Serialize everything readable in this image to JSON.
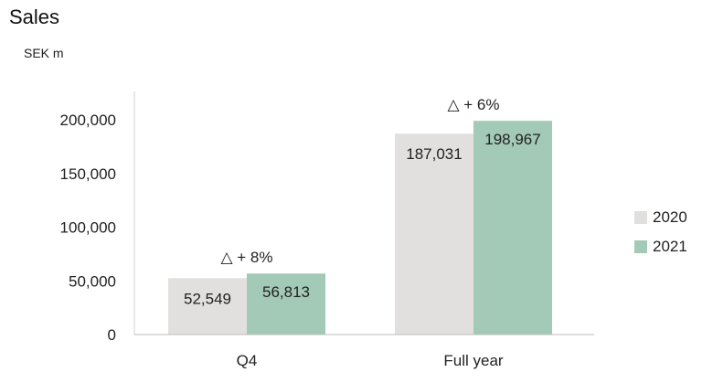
{
  "title": "Sales",
  "unit_label": "SEK m",
  "colors": {
    "series_2020": "#e2e0de",
    "series_2021": "#a3c9b7"
  },
  "chart_data": {
    "type": "bar",
    "categories": [
      "Q4",
      "Full year"
    ],
    "series": [
      {
        "name": "2020",
        "values": [
          52549,
          187031
        ]
      },
      {
        "name": "2021",
        "values": [
          56813,
          198967
        ]
      }
    ],
    "data_labels": [
      [
        "52,549",
        "187,031"
      ],
      [
        "56,813",
        "198,967"
      ]
    ],
    "annotations": [
      "△  + 8%",
      "△  + 6%"
    ],
    "yticks": [
      0,
      50000,
      100000,
      150000,
      200000
    ],
    "ytick_labels": [
      "0",
      "50,000",
      "100,000",
      "150,000",
      "200,000"
    ],
    "ylim": [
      0,
      200000
    ],
    "xlabel": "",
    "ylabel": "",
    "grid": false,
    "legend_position": "right"
  }
}
